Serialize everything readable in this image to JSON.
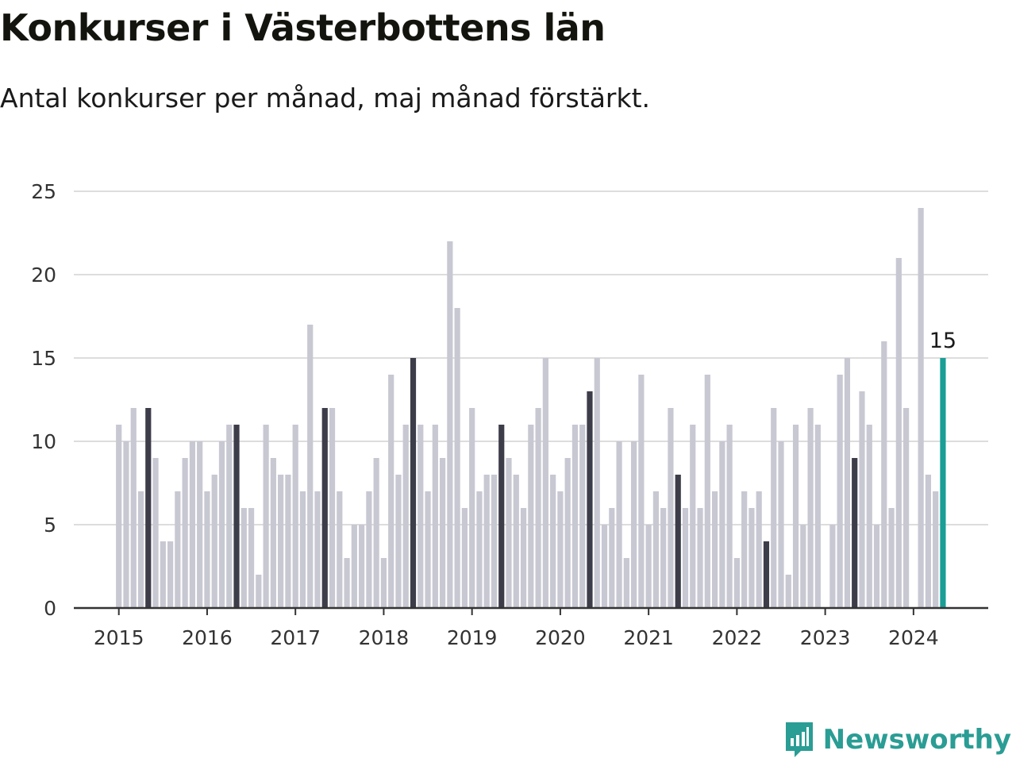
{
  "title": "Konkurser i Västerbottens län",
  "subtitle": "Antal konkurser per månad, maj månad förstärkt.",
  "brand": {
    "name": "Newsworthy",
    "color": "#2a9d94"
  },
  "colors": {
    "bar": "#c8c8d3",
    "highlight_may": "#3d3d4a",
    "latest": "#1a9e96",
    "grid": "#dddddd",
    "axis": "#333333"
  },
  "chart_data": {
    "type": "bar",
    "title": "Konkurser i Västerbottens län",
    "subtitle": "Antal konkurser per månad, maj månad förstärkt.",
    "xlabel": "",
    "ylabel": "",
    "ylim": [
      0,
      25
    ],
    "yticks": [
      "0",
      "5",
      "10",
      "15",
      "20",
      "25"
    ],
    "xticks": [
      "2015",
      "2016",
      "2017",
      "2018",
      "2019",
      "2020",
      "2021",
      "2022",
      "2023",
      "2024"
    ],
    "grid": true,
    "start": "2015-01",
    "end": "2024-05",
    "highlight_month": "05",
    "latest_label": "15",
    "values": [
      11,
      10,
      12,
      7,
      12,
      9,
      4,
      4,
      7,
      9,
      10,
      10,
      7,
      8,
      10,
      11,
      11,
      6,
      6,
      2,
      11,
      9,
      8,
      8,
      11,
      7,
      17,
      7,
      12,
      12,
      7,
      3,
      5,
      5,
      7,
      9,
      3,
      14,
      8,
      11,
      15,
      11,
      7,
      11,
      9,
      22,
      18,
      6,
      12,
      7,
      8,
      8,
      11,
      9,
      8,
      6,
      11,
      12,
      15,
      8,
      7,
      9,
      11,
      11,
      13,
      15,
      5,
      6,
      10,
      3,
      10,
      14,
      5,
      7,
      6,
      12,
      8,
      6,
      11,
      6,
      14,
      7,
      10,
      11,
      3,
      7,
      6,
      7,
      4,
      12,
      10,
      2,
      11,
      5,
      12,
      11,
      0,
      5,
      14,
      15,
      9,
      13,
      11,
      5,
      16,
      6,
      21,
      12,
      0,
      24,
      8,
      7,
      15
    ]
  }
}
